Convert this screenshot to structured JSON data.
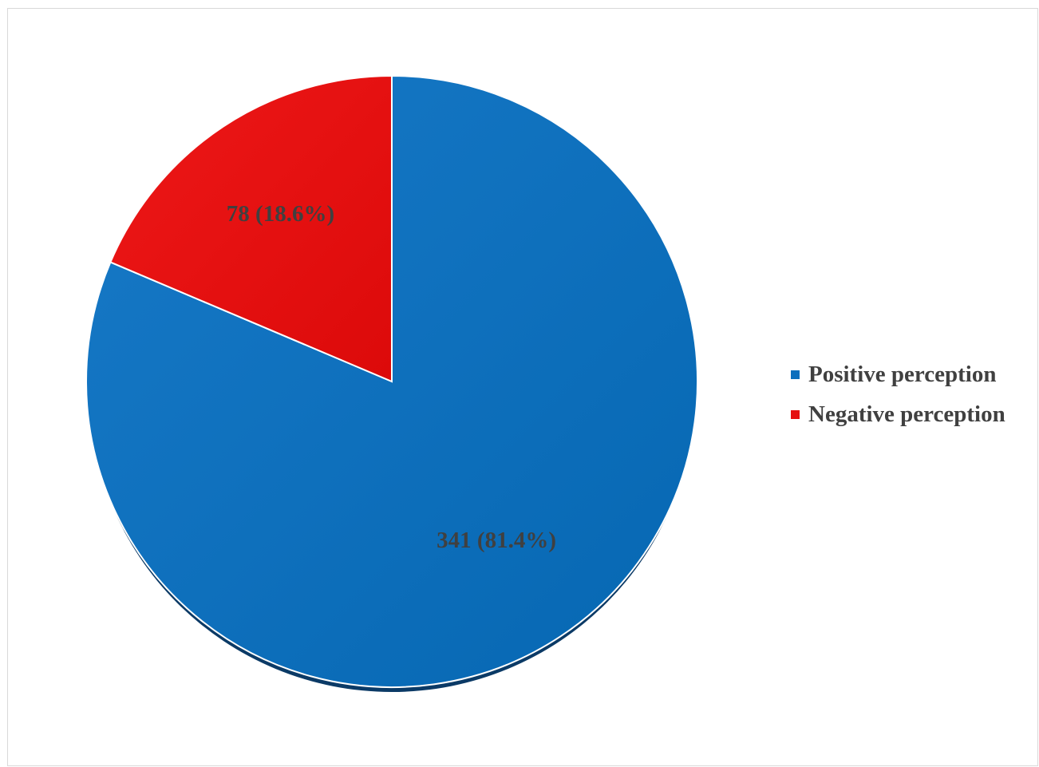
{
  "chart_data": {
    "type": "pie",
    "categories": [
      "Positive perception",
      "Negative perception"
    ],
    "values": [
      341,
      78
    ],
    "percentages": [
      81.4,
      18.6
    ],
    "data_labels": [
      "341 (81.4%)",
      "78 (18.6%)"
    ],
    "colors": [
      "#0A6EBD",
      "#E50E0E"
    ],
    "legend_position": "right",
    "title": ""
  },
  "legend": {
    "items": [
      {
        "label": "Positive perception",
        "color": "#0A6EBD"
      },
      {
        "label": "Negative perception",
        "color": "#E50E0E"
      }
    ]
  }
}
